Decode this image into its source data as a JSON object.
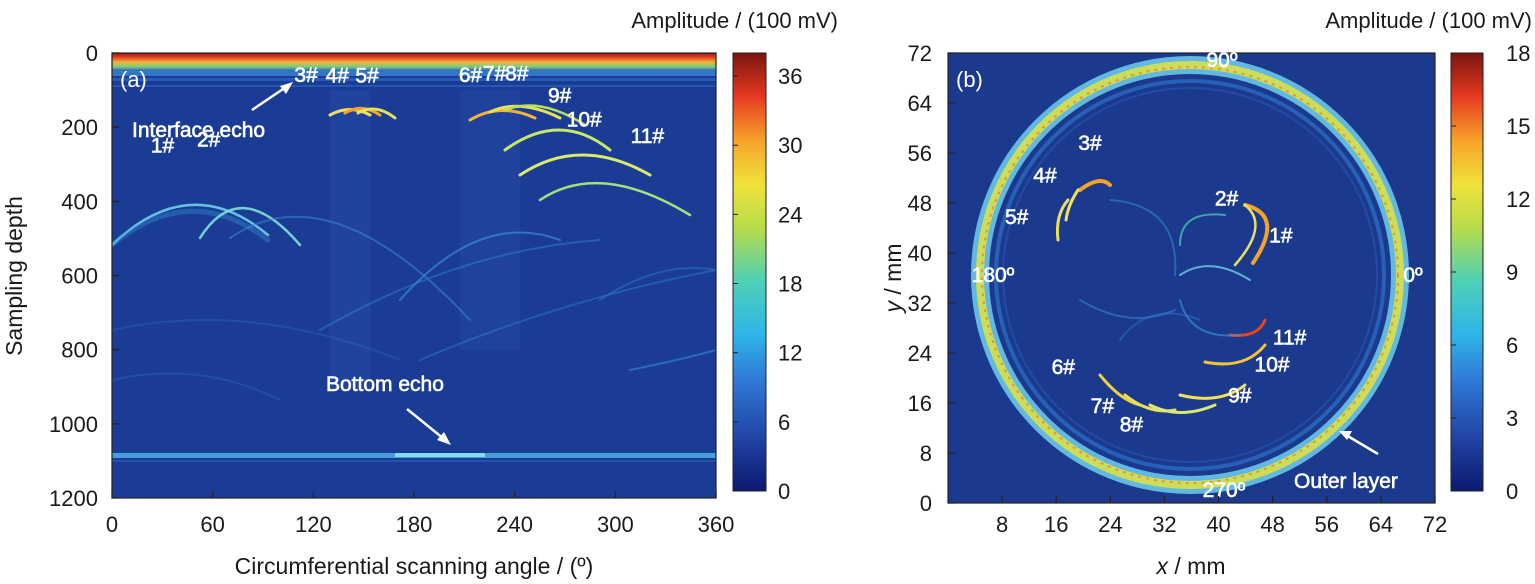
{
  "chart_data": [
    {
      "type": "heatmap",
      "panel": "(a)",
      "xlabel": "Circumferential scanning angle / (º)",
      "ylabel": "Sampling depth",
      "xlim": [
        0,
        360
      ],
      "ylim": [
        1200,
        0
      ],
      "xticks": [
        "0",
        "60",
        "120",
        "180",
        "240",
        "300",
        "360"
      ],
      "yticks": [
        "0",
        "200",
        "400",
        "600",
        "800",
        "1000",
        "1200"
      ],
      "colorbar": {
        "title": "Amplitude / (100 mV)",
        "range": [
          0,
          38
        ],
        "ticks": [
          "0",
          "6",
          "12",
          "18",
          "24",
          "30",
          "36"
        ]
      },
      "echo_lines": [
        {
          "name": "Interface echo",
          "depth": 15,
          "amplitude": 36
        },
        {
          "name": "Bottom echo",
          "depth": 1105,
          "amplitude": 14
        }
      ],
      "defects": [
        {
          "label": "1#",
          "angle": 48,
          "depth": 365
        },
        {
          "label": "2#",
          "angle": 60,
          "depth": 360
        },
        {
          "label": "3#",
          "angle": 130,
          "depth": 165
        },
        {
          "label": "4#",
          "angle": 145,
          "depth": 160
        },
        {
          "label": "5#",
          "angle": 158,
          "depth": 160
        },
        {
          "label": "6#",
          "angle": 228,
          "depth": 165
        },
        {
          "label": "7#",
          "angle": 240,
          "depth": 150
        },
        {
          "label": "8#",
          "angle": 252,
          "depth": 150
        },
        {
          "label": "9#",
          "angle": 268,
          "depth": 220
        },
        {
          "label": "10#",
          "angle": 285,
          "depth": 290
        },
        {
          "label": "11#",
          "angle": 300,
          "depth": 335
        }
      ],
      "annotations": {
        "panel_tag": "(a)",
        "interface": "Interface echo",
        "bottom": "Bottom echo",
        "labels": [
          "1#",
          "2#",
          "3#",
          "4#",
          "5#",
          "6#",
          "7#",
          "8#",
          "9#",
          "10#",
          "11#"
        ]
      }
    },
    {
      "type": "heatmap",
      "panel": "(b)",
      "xlabel_italic": "x",
      "xlabel_rest": " / mm",
      "ylabel_italic": "y",
      "ylabel_rest": " / mm",
      "xlim": [
        0,
        72
      ],
      "ylim": [
        0,
        72
      ],
      "xticks": [
        "8",
        "16",
        "24",
        "32",
        "40",
        "48",
        "56",
        "64",
        "72"
      ],
      "yticks": [
        "0",
        "8",
        "16",
        "24",
        "32",
        "40",
        "48",
        "56",
        "64",
        "72"
      ],
      "colorbar": {
        "title": "Amplitude / (100 mV)",
        "range": [
          0,
          18
        ],
        "ticks": [
          "0",
          "3",
          "6",
          "9",
          "12",
          "15",
          "18"
        ]
      },
      "ring": {
        "center": [
          36,
          36
        ],
        "radius": 31,
        "amplitude": 15
      },
      "angle_labels": [
        "90º",
        "180º",
        "0º",
        "270º"
      ],
      "defects": [
        {
          "label": "1#",
          "x": 43,
          "y": 43
        },
        {
          "label": "2#",
          "x": 40,
          "y": 46
        },
        {
          "label": "3#",
          "x": 21,
          "y": 53
        },
        {
          "label": "4#",
          "x": 17,
          "y": 50
        },
        {
          "label": "5#",
          "x": 14,
          "y": 45
        },
        {
          "label": "6#",
          "x": 20,
          "y": 20
        },
        {
          "label": "7#",
          "x": 24,
          "y": 16
        },
        {
          "label": "8#",
          "x": 28,
          "y": 14
        },
        {
          "label": "9#",
          "x": 39,
          "y": 18
        },
        {
          "label": "10#",
          "x": 42,
          "y": 23
        },
        {
          "label": "11#",
          "x": 44,
          "y": 27
        }
      ],
      "annotations": {
        "panel_tag": "(b)",
        "outer": "Outer layer",
        "labels": [
          "1#",
          "2#",
          "3#",
          "4#",
          "5#",
          "6#",
          "7#",
          "8#",
          "9#",
          "10#",
          "11#"
        ]
      }
    }
  ]
}
